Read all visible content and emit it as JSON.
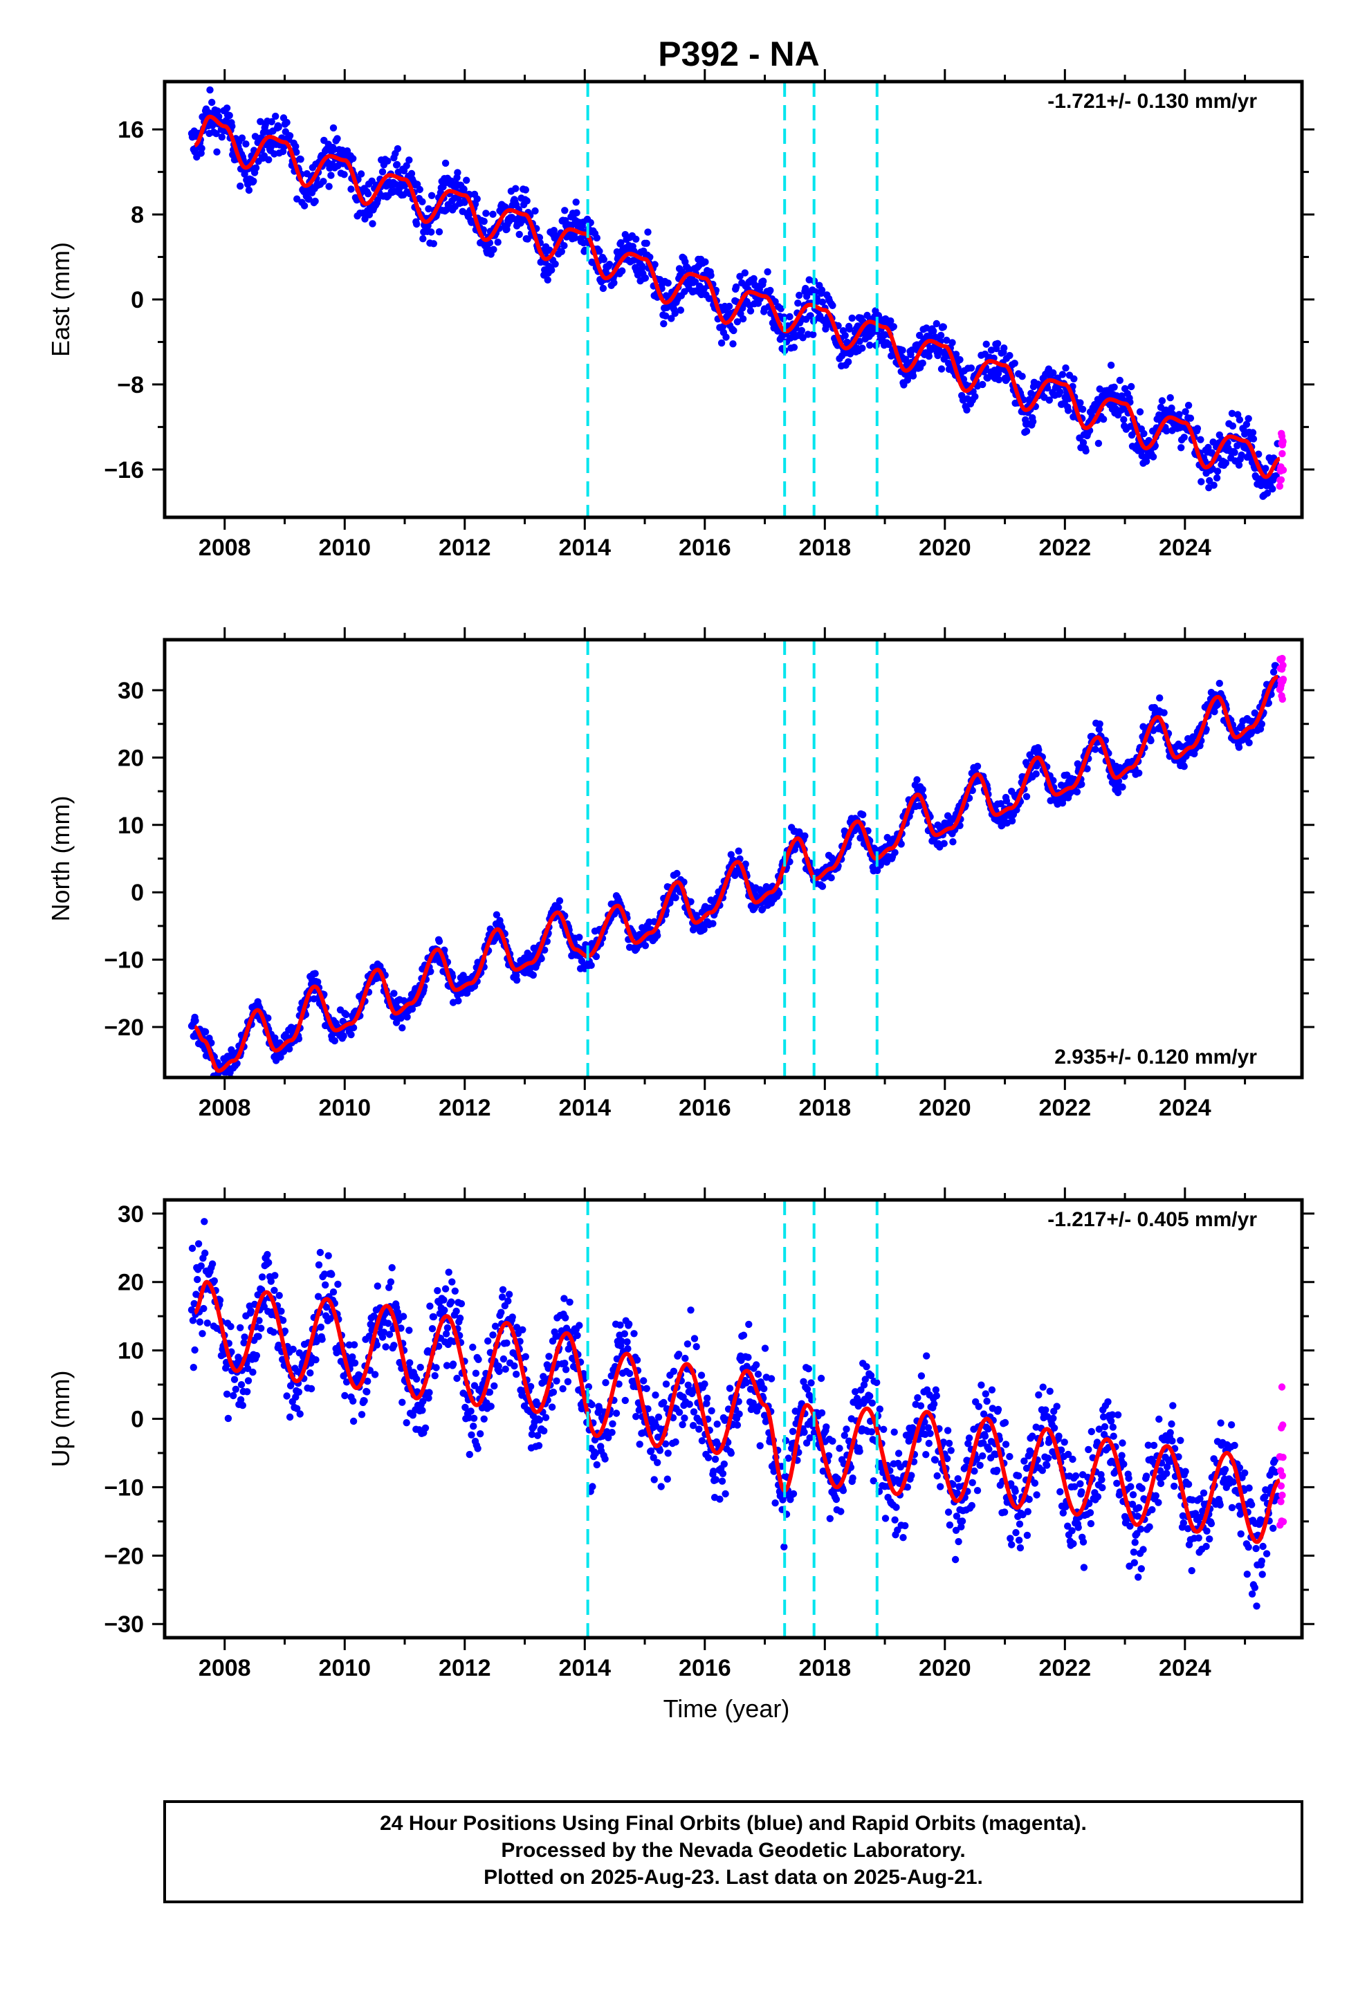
{
  "title": "P392 - NA",
  "colors": {
    "final": "#0000ff",
    "rapid": "#ff00ff",
    "model": "#ff0000",
    "event": "#00e5ee"
  },
  "footer": {
    "line1": "24 Hour Positions Using Final Orbits (blue) and Rapid Orbits (magenta).",
    "line2": "Processed by the Nevada Geodetic Laboratory.",
    "line3": "Plotted on 2025-Aug-23. Last data on 2025-Aug-21."
  },
  "chart_data": [
    {
      "type": "scatter",
      "component": "east",
      "ylabel": "East (mm)",
      "xlabel": "",
      "xlim": [
        2007.0,
        2025.95
      ],
      "ylim": [
        -20.5,
        20.5
      ],
      "yticks": [
        -16,
        -8,
        0,
        8,
        16
      ],
      "xticks": [
        2008,
        2010,
        2012,
        2014,
        2016,
        2018,
        2020,
        2022,
        2024
      ],
      "rate_text": "-1.721+/- 0.130 mm/yr",
      "rate_position": "top-right",
      "event_lines": [
        2014.05,
        2017.33,
        2017.82,
        2018.87
      ],
      "series": [
        {
          "name": "Final Orbits",
          "color": "#0000ff",
          "start": 2007.45,
          "end": 2025.55,
          "noise": 1.1
        },
        {
          "name": "Rapid Orbits",
          "color": "#ff00ff",
          "start": 2025.58,
          "end": 2025.64,
          "noise": 1.6
        }
      ],
      "model_points": [
        [
          2007.5,
          14.5
        ],
        [
          2007.75,
          17.2
        ],
        [
          2008.0,
          16.3
        ],
        [
          2008.35,
          12.4
        ],
        [
          2008.75,
          15.3
        ],
        [
          2009.0,
          14.8
        ],
        [
          2009.35,
          10.7
        ],
        [
          2009.75,
          13.5
        ],
        [
          2010.0,
          13.1
        ],
        [
          2010.35,
          9.0
        ],
        [
          2010.75,
          11.7
        ],
        [
          2011.0,
          11.3
        ],
        [
          2011.35,
          7.3
        ],
        [
          2011.75,
          10.2
        ],
        [
          2012.0,
          9.8
        ],
        [
          2012.35,
          5.6
        ],
        [
          2012.75,
          8.4
        ],
        [
          2013.0,
          8.0
        ],
        [
          2013.35,
          3.8
        ],
        [
          2013.75,
          6.6
        ],
        [
          2014.0,
          6.2
        ],
        [
          2014.35,
          2.0
        ],
        [
          2014.75,
          4.3
        ],
        [
          2015.0,
          3.8
        ],
        [
          2015.35,
          -0.3
        ],
        [
          2015.75,
          2.4
        ],
        [
          2016.0,
          2.0
        ],
        [
          2016.35,
          -2.2
        ],
        [
          2016.75,
          0.7
        ],
        [
          2017.0,
          0.3
        ],
        [
          2017.35,
          -3.0
        ],
        [
          2017.75,
          -0.5
        ],
        [
          2018.0,
          -1.0
        ],
        [
          2018.35,
          -4.6
        ],
        [
          2018.75,
          -2.1
        ],
        [
          2019.0,
          -2.6
        ],
        [
          2019.35,
          -6.7
        ],
        [
          2019.75,
          -3.9
        ],
        [
          2020.0,
          -4.4
        ],
        [
          2020.35,
          -8.6
        ],
        [
          2020.75,
          -5.8
        ],
        [
          2021.0,
          -6.2
        ],
        [
          2021.35,
          -10.4
        ],
        [
          2021.75,
          -7.6
        ],
        [
          2022.0,
          -8.0
        ],
        [
          2022.35,
          -12.1
        ],
        [
          2022.75,
          -9.4
        ],
        [
          2023.0,
          -9.8
        ],
        [
          2023.35,
          -14.0
        ],
        [
          2023.75,
          -11.1
        ],
        [
          2024.0,
          -11.6
        ],
        [
          2024.35,
          -15.8
        ],
        [
          2024.75,
          -12.9
        ],
        [
          2025.0,
          -13.3
        ],
        [
          2025.35,
          -16.7
        ],
        [
          2025.58,
          -15.0
        ]
      ]
    },
    {
      "type": "scatter",
      "component": "north",
      "ylabel": "North (mm)",
      "xlabel": "",
      "xlim": [
        2007.0,
        2025.95
      ],
      "ylim": [
        -27.5,
        37.5
      ],
      "yticks": [
        -20,
        -10,
        0,
        10,
        20,
        30
      ],
      "xticks": [
        2008,
        2010,
        2012,
        2014,
        2016,
        2018,
        2020,
        2022,
        2024
      ],
      "rate_text": "2.935+/- 0.120 mm/yr",
      "rate_position": "bottom-right",
      "event_lines": [
        2014.05,
        2017.33,
        2017.82,
        2018.87
      ],
      "series": [
        {
          "name": "Final Orbits",
          "color": "#0000ff",
          "start": 2007.45,
          "end": 2025.55,
          "noise": 1.0
        },
        {
          "name": "Rapid Orbits",
          "color": "#ff00ff",
          "start": 2025.58,
          "end": 2025.64,
          "noise": 1.8
        }
      ],
      "model_points": [
        [
          2007.5,
          -20.0
        ],
        [
          2007.65,
          -22.0
        ],
        [
          2007.9,
          -26.5
        ],
        [
          2008.15,
          -25.0
        ],
        [
          2008.55,
          -17.5
        ],
        [
          2008.85,
          -23.5
        ],
        [
          2009.1,
          -22.0
        ],
        [
          2009.5,
          -14.0
        ],
        [
          2009.85,
          -20.5
        ],
        [
          2010.1,
          -19.5
        ],
        [
          2010.55,
          -11.5
        ],
        [
          2010.85,
          -18.0
        ],
        [
          2011.1,
          -16.5
        ],
        [
          2011.55,
          -8.5
        ],
        [
          2011.85,
          -14.5
        ],
        [
          2012.1,
          -13.5
        ],
        [
          2012.55,
          -5.5
        ],
        [
          2012.85,
          -11.5
        ],
        [
          2013.1,
          -10.5
        ],
        [
          2013.55,
          -3.0
        ],
        [
          2013.85,
          -8.5
        ],
        [
          2014.05,
          -9.5
        ],
        [
          2014.55,
          -2.0
        ],
        [
          2014.85,
          -7.5
        ],
        [
          2015.1,
          -6.0
        ],
        [
          2015.55,
          1.5
        ],
        [
          2015.85,
          -4.5
        ],
        [
          2016.1,
          -3.0
        ],
        [
          2016.55,
          4.5
        ],
        [
          2016.85,
          -1.5
        ],
        [
          2017.1,
          0.0
        ],
        [
          2017.55,
          8.0
        ],
        [
          2017.85,
          2.0
        ],
        [
          2018.1,
          3.5
        ],
        [
          2018.55,
          10.5
        ],
        [
          2018.85,
          5.0
        ],
        [
          2019.1,
          6.5
        ],
        [
          2019.55,
          14.5
        ],
        [
          2019.85,
          8.5
        ],
        [
          2020.1,
          9.5
        ],
        [
          2020.55,
          17.5
        ],
        [
          2020.85,
          11.5
        ],
        [
          2021.1,
          12.5
        ],
        [
          2021.55,
          20.0
        ],
        [
          2021.85,
          14.5
        ],
        [
          2022.1,
          15.5
        ],
        [
          2022.55,
          23.0
        ],
        [
          2022.85,
          17.0
        ],
        [
          2023.1,
          18.5
        ],
        [
          2023.55,
          26.0
        ],
        [
          2023.85,
          20.0
        ],
        [
          2024.1,
          21.5
        ],
        [
          2024.55,
          29.0
        ],
        [
          2024.85,
          23.0
        ],
        [
          2025.1,
          24.5
        ],
        [
          2025.55,
          32.0
        ]
      ]
    },
    {
      "type": "scatter",
      "component": "up",
      "ylabel": "Up (mm)",
      "xlabel": "Time (year)",
      "xlim": [
        2007.0,
        2025.95
      ],
      "ylim": [
        -32.0,
        32.0
      ],
      "yticks": [
        -30,
        -20,
        -10,
        0,
        10,
        20,
        30
      ],
      "xticks": [
        2008,
        2010,
        2012,
        2014,
        2016,
        2018,
        2020,
        2022,
        2024
      ],
      "rate_text": "-1.217+/- 0.405 mm/yr",
      "rate_position": "top-right",
      "event_lines": [
        2014.05,
        2017.33,
        2017.82,
        2018.87
      ],
      "series": [
        {
          "name": "Final Orbits",
          "color": "#0000ff",
          "start": 2007.45,
          "end": 2025.55,
          "noise": 3.5
        },
        {
          "name": "Rapid Orbits",
          "color": "#ff00ff",
          "start": 2025.58,
          "end": 2025.64,
          "noise": 5.0
        }
      ],
      "model_points": [
        [
          2007.5,
          15.5
        ],
        [
          2007.7,
          20.0
        ],
        [
          2008.2,
          7.0
        ],
        [
          2008.7,
          18.5
        ],
        [
          2009.2,
          5.5
        ],
        [
          2009.7,
          17.5
        ],
        [
          2010.2,
          4.5
        ],
        [
          2010.7,
          16.5
        ],
        [
          2011.2,
          3.0
        ],
        [
          2011.7,
          15.0
        ],
        [
          2012.2,
          2.0
        ],
        [
          2012.7,
          14.0
        ],
        [
          2013.2,
          1.0
        ],
        [
          2013.7,
          12.5
        ],
        [
          2014.2,
          -2.5
        ],
        [
          2014.7,
          9.5
        ],
        [
          2015.2,
          -4.0
        ],
        [
          2015.7,
          8.0
        ],
        [
          2016.2,
          -5.0
        ],
        [
          2016.7,
          7.0
        ],
        [
          2017.0,
          2.0
        ],
        [
          2017.33,
          -10.5
        ],
        [
          2017.7,
          2.0
        ],
        [
          2018.2,
          -10.0
        ],
        [
          2018.7,
          1.5
        ],
        [
          2019.2,
          -11.0
        ],
        [
          2019.7,
          1.0
        ],
        [
          2020.2,
          -12.0
        ],
        [
          2020.7,
          0.0
        ],
        [
          2021.2,
          -13.0
        ],
        [
          2021.7,
          -1.5
        ],
        [
          2022.2,
          -14.0
        ],
        [
          2022.7,
          -3.0
        ],
        [
          2023.2,
          -15.5
        ],
        [
          2023.7,
          -4.0
        ],
        [
          2024.2,
          -16.5
        ],
        [
          2024.7,
          -5.0
        ],
        [
          2025.2,
          -18.0
        ],
        [
          2025.58,
          -9.0
        ]
      ]
    }
  ]
}
